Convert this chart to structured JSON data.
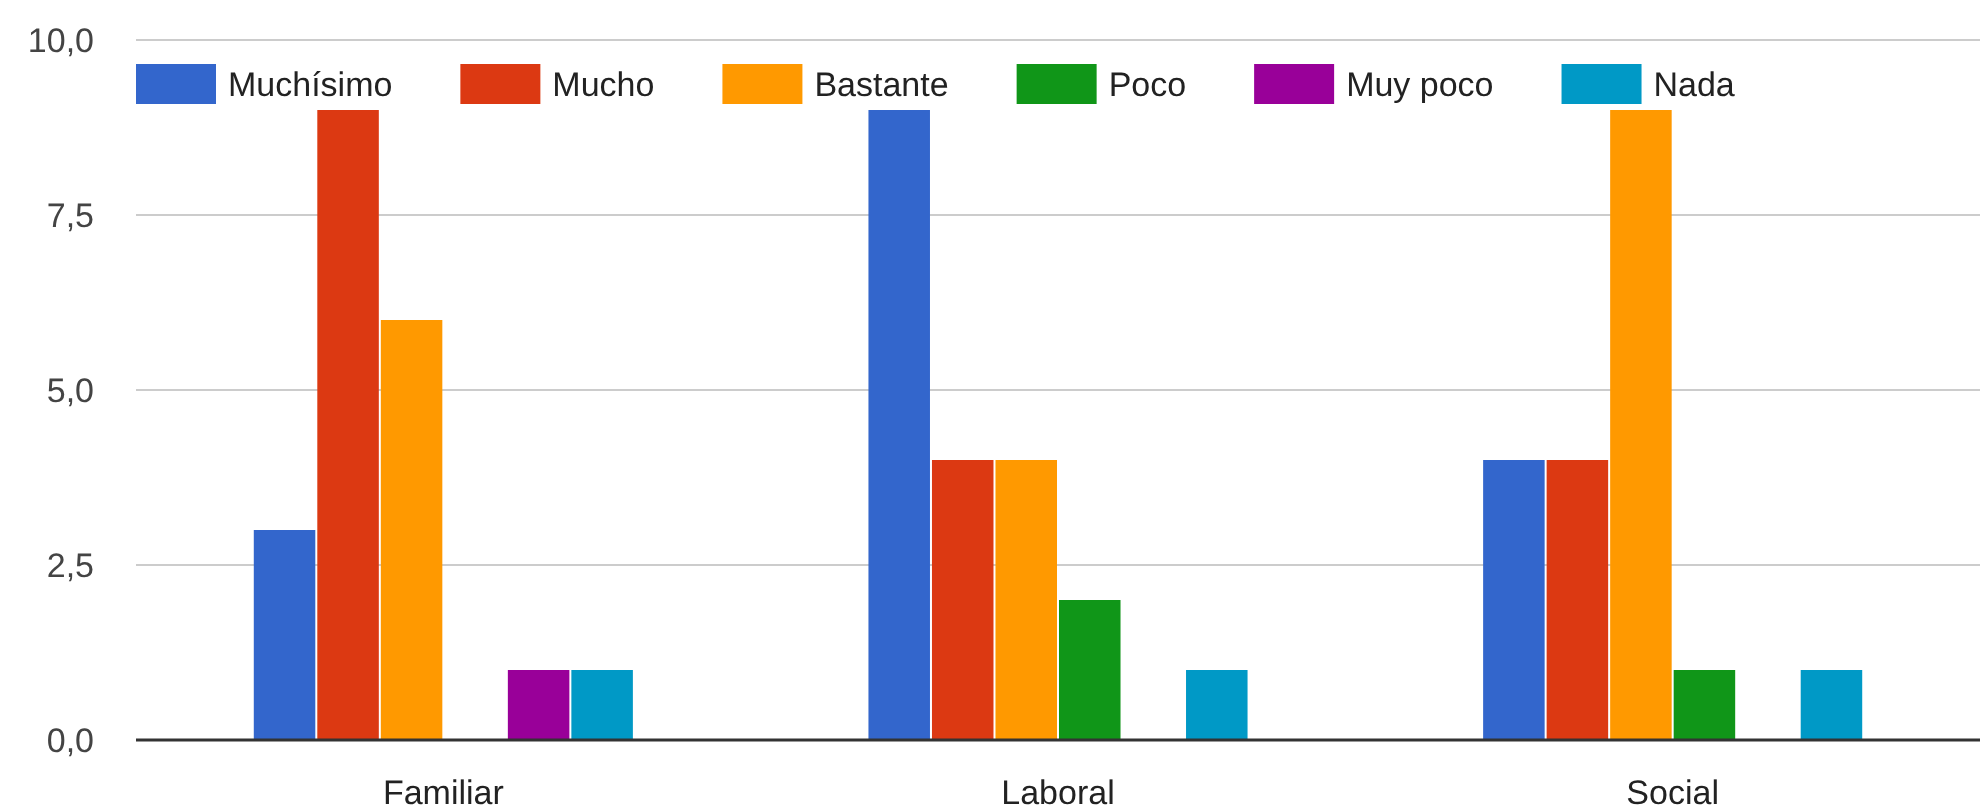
{
  "chart_data": {
    "type": "bar",
    "categories": [
      "Familiar",
      "Laboral",
      "Social"
    ],
    "series": [
      {
        "name": "Muchísimo",
        "color": "#3366cc",
        "values": [
          3,
          9,
          4
        ]
      },
      {
        "name": "Mucho",
        "color": "#dc3912",
        "values": [
          9,
          4,
          4
        ]
      },
      {
        "name": "Bastante",
        "color": "#ff9900",
        "values": [
          6,
          4,
          9
        ]
      },
      {
        "name": "Poco",
        "color": "#109618",
        "values": [
          0,
          2,
          1
        ]
      },
      {
        "name": "Muy poco",
        "color": "#990099",
        "values": [
          1,
          0,
          0
        ]
      },
      {
        "name": "Nada",
        "color": "#0099c6",
        "values": [
          1,
          1,
          1
        ]
      }
    ],
    "ylim": [
      0,
      10
    ],
    "yticks": [
      {
        "value": 0,
        "label": "0,0"
      },
      {
        "value": 2.5,
        "label": "2,5"
      },
      {
        "value": 5,
        "label": "5,0"
      },
      {
        "value": 7.5,
        "label": "7,5"
      },
      {
        "value": 10,
        "label": "10,0"
      }
    ],
    "grid": "y",
    "legend": "top"
  }
}
